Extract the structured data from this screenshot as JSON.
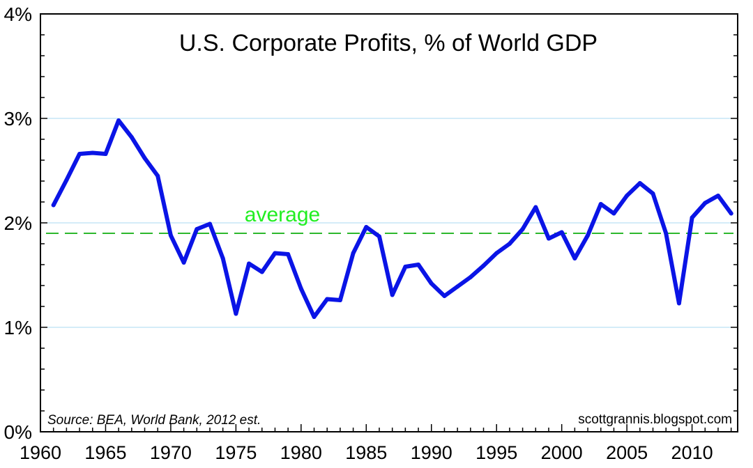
{
  "chart_data": {
    "type": "line",
    "title": "U.S. Corporate Profits, % of World GDP",
    "xlabel": "",
    "ylabel": "",
    "xlim": [
      1960,
      2013.5
    ],
    "ylim": [
      0,
      4
    ],
    "x_ticks": [
      1960,
      1965,
      1970,
      1975,
      1980,
      1985,
      1990,
      1995,
      2000,
      2005,
      2010
    ],
    "x_tick_labels": [
      "1960",
      "1965",
      "1970",
      "1975",
      "1980",
      "1985",
      "1990",
      "1995",
      "2000",
      "2005",
      "2010"
    ],
    "y_ticks": [
      0,
      1,
      2,
      3,
      4
    ],
    "y_tick_labels": [
      "0%",
      "1%",
      "2%",
      "3%",
      "4%"
    ],
    "gridlines_y": [
      1,
      2,
      3
    ],
    "series": [
      {
        "name": "U.S. Corporate Profits, % of World GDP",
        "color": "#0a14e6",
        "x": [
          1961,
          1962,
          1963,
          1964,
          1965,
          1966,
          1967,
          1968,
          1969,
          1970,
          1971,
          1972,
          1973,
          1974,
          1975,
          1976,
          1977,
          1978,
          1979,
          1980,
          1981,
          1982,
          1983,
          1984,
          1985,
          1986,
          1987,
          1988,
          1989,
          1990,
          1991,
          1992,
          1993,
          1994,
          1995,
          1996,
          1997,
          1998,
          1999,
          2000,
          2001,
          2002,
          2003,
          2004,
          2005,
          2006,
          2007,
          2008,
          2009,
          2010,
          2011,
          2012,
          2013
        ],
        "values": [
          2.17,
          2.41,
          2.66,
          2.67,
          2.66,
          2.98,
          2.82,
          2.62,
          2.45,
          1.88,
          1.62,
          1.94,
          1.99,
          1.66,
          1.13,
          1.61,
          1.53,
          1.71,
          1.7,
          1.37,
          1.1,
          1.27,
          1.26,
          1.71,
          1.96,
          1.87,
          1.31,
          1.58,
          1.6,
          1.42,
          1.3,
          1.39,
          1.48,
          1.59,
          1.71,
          1.8,
          1.94,
          2.15,
          1.85,
          1.91,
          1.66,
          1.88,
          2.18,
          2.09,
          2.26,
          2.38,
          2.28,
          1.9,
          1.23,
          2.05,
          2.19,
          2.26,
          2.09
        ]
      }
    ],
    "average": {
      "label": "average",
      "value": 1.9,
      "color": "#2db82d",
      "label_color": "#22ee22"
    },
    "annotations": {
      "source": "Source: BEA, World Bank, 2012 est.",
      "credit": "scottgrannis.blogspot.com"
    }
  }
}
